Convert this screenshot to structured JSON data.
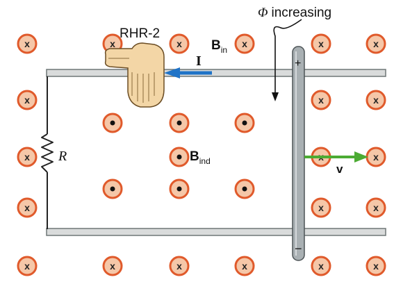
{
  "labels": {
    "rule": "RHR-2",
    "current": "I",
    "b_in_main": "B",
    "b_in_sub": "in",
    "b_ind_main": "B",
    "b_ind_sub": "ind",
    "resistor": "R",
    "velocity": "v",
    "flux_symbol": "Φ",
    "flux_text": "increasing",
    "plus": "+",
    "minus": "−",
    "into_symbol": "x"
  },
  "colors": {
    "field_ring": "#e05a2b",
    "field_fill": "#f5c7a8",
    "rail_fill": "#d9dbdb",
    "rail_stroke": "#6f7777",
    "rod_fill": "#a9b0b3",
    "rod_stroke": "#4d5457",
    "current_arrow": "#1f73c7",
    "velocity_arrow": "#4cab33",
    "hand_fill": "#f3d6a6",
    "hand_stroke": "#6b4d24",
    "wire": "#222222"
  },
  "icons": {
    "into_page": "x-in-circle-icon",
    "out_of_page": "dot-in-circle-icon",
    "hand": "right-hand-icon"
  }
}
